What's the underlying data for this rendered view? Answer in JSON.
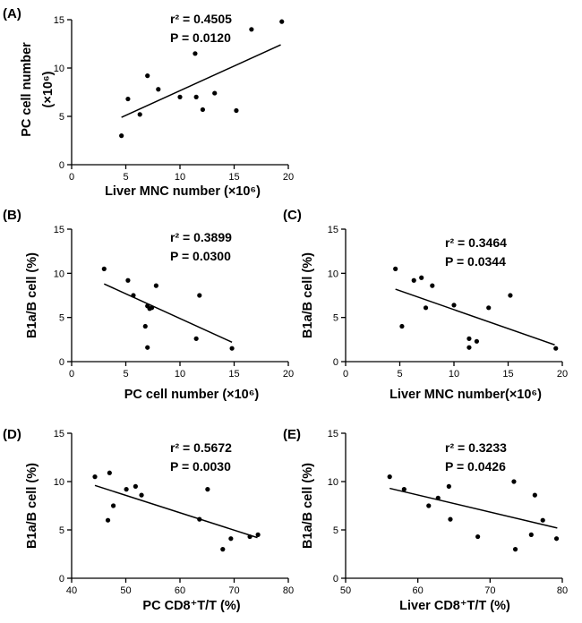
{
  "chart_data": [
    {
      "id": "A",
      "type": "scatter",
      "panel_label": "(A)",
      "xlabel": "Liver MNC number (×10⁶)",
      "ylabel": "PC cell  number",
      "ylabel_unit": "(×10⁶)",
      "xlim": [
        0,
        20
      ],
      "ylim": [
        0,
        15
      ],
      "xticks": [
        0,
        5,
        10,
        15,
        20
      ],
      "yticks": [
        0,
        5,
        10,
        15
      ],
      "points": [
        [
          4.6,
          3.0
        ],
        [
          5.2,
          6.8
        ],
        [
          6.3,
          5.2
        ],
        [
          7.0,
          9.2
        ],
        [
          8.0,
          7.8
        ],
        [
          10.0,
          7.0
        ],
        [
          11.4,
          11.5
        ],
        [
          11.5,
          7.0
        ],
        [
          12.1,
          5.7
        ],
        [
          13.2,
          7.4
        ],
        [
          15.2,
          5.6
        ],
        [
          16.6,
          14.0
        ],
        [
          19.4,
          14.8
        ]
      ],
      "fit": {
        "x": [
          4.6,
          19.3
        ],
        "y": [
          4.9,
          12.4
        ]
      },
      "stats": {
        "r2": "r² = 0.4505",
        "p": "P = 0.0120"
      }
    },
    {
      "id": "B",
      "type": "scatter",
      "panel_label": "(B)",
      "xlabel": "PC cell number (×10⁶)",
      "ylabel": "B1a/B cell (%)",
      "xlim": [
        0,
        20
      ],
      "ylim": [
        0,
        15
      ],
      "xticks": [
        0,
        5,
        10,
        15,
        20
      ],
      "yticks": [
        0,
        5,
        10,
        15
      ],
      "points": [
        [
          3.0,
          10.5
        ],
        [
          5.2,
          9.2
        ],
        [
          5.7,
          7.5
        ],
        [
          6.8,
          4.0
        ],
        [
          7.0,
          1.6
        ],
        [
          7.0,
          6.3
        ],
        [
          7.2,
          6.0
        ],
        [
          7.4,
          6.1
        ],
        [
          7.8,
          8.6
        ],
        [
          11.5,
          2.6
        ],
        [
          11.8,
          7.5
        ],
        [
          14.8,
          1.5
        ]
      ],
      "fit": {
        "x": [
          3.0,
          14.8
        ],
        "y": [
          8.8,
          2.2
        ]
      },
      "stats": {
        "r2": "r² = 0.3899",
        "p": "P = 0.0300"
      }
    },
    {
      "id": "C",
      "type": "scatter",
      "panel_label": "(C)",
      "xlabel": "Liver MNC number(×10⁶)",
      "ylabel": "B1a/B cell (%)",
      "xlim": [
        0,
        20
      ],
      "ylim": [
        0,
        15
      ],
      "xticks": [
        0,
        5,
        10,
        15,
        20
      ],
      "yticks": [
        0,
        5,
        10,
        15
      ],
      "points": [
        [
          4.6,
          10.5
        ],
        [
          5.2,
          4.0
        ],
        [
          6.3,
          9.2
        ],
        [
          7.0,
          9.5
        ],
        [
          7.4,
          6.1
        ],
        [
          8.0,
          8.6
        ],
        [
          10.0,
          6.4
        ],
        [
          11.4,
          1.6
        ],
        [
          11.4,
          2.6
        ],
        [
          12.1,
          2.3
        ],
        [
          13.2,
          6.1
        ],
        [
          15.2,
          7.5
        ],
        [
          19.4,
          1.5
        ]
      ],
      "fit": {
        "x": [
          4.6,
          19.3
        ],
        "y": [
          8.2,
          1.9
        ]
      },
      "stats": {
        "r2": "r² = 0.3464",
        "p": "P = 0.0344"
      }
    },
    {
      "id": "D",
      "type": "scatter",
      "panel_label": "(D)",
      "xlabel": "PC CD8⁺T/T (%)",
      "ylabel": "B1a/B cell (%)",
      "xlim": [
        40,
        80
      ],
      "ylim": [
        0,
        15
      ],
      "xticks": [
        40,
        50,
        60,
        70,
        80
      ],
      "yticks": [
        0,
        5,
        10,
        15
      ],
      "points": [
        [
          44.3,
          10.5
        ],
        [
          46.7,
          6.0
        ],
        [
          47.0,
          10.9
        ],
        [
          47.7,
          7.5
        ],
        [
          50.1,
          9.2
        ],
        [
          51.8,
          9.5
        ],
        [
          52.9,
          8.6
        ],
        [
          63.6,
          6.1
        ],
        [
          65.1,
          9.2
        ],
        [
          67.9,
          3.0
        ],
        [
          69.4,
          4.1
        ],
        [
          72.9,
          4.3
        ],
        [
          74.4,
          4.5
        ]
      ],
      "fit": {
        "x": [
          44.3,
          74.3
        ],
        "y": [
          9.6,
          4.2
        ]
      },
      "stats": {
        "r2": "r² = 0.5672",
        "p": "P = 0.0030"
      }
    },
    {
      "id": "E",
      "type": "scatter",
      "panel_label": "(E)",
      "xlabel": "Liver  CD8⁺T/T (%)",
      "ylabel": "B1a/B cell (%)",
      "xlim": [
        50,
        80
      ],
      "ylim": [
        0,
        15
      ],
      "xticks": [
        50,
        60,
        70,
        80
      ],
      "yticks": [
        0,
        5,
        10,
        15
      ],
      "points": [
        [
          56.1,
          10.5
        ],
        [
          58.1,
          9.2
        ],
        [
          61.5,
          7.5
        ],
        [
          62.8,
          8.3
        ],
        [
          64.3,
          9.5
        ],
        [
          64.5,
          6.1
        ],
        [
          68.3,
          4.3
        ],
        [
          73.3,
          10.0
        ],
        [
          73.5,
          3.0
        ],
        [
          75.7,
          4.5
        ],
        [
          76.2,
          8.6
        ],
        [
          77.3,
          6.0
        ],
        [
          79.2,
          4.1
        ]
      ],
      "fit": {
        "x": [
          56.1,
          79.3
        ],
        "y": [
          9.3,
          5.2
        ]
      },
      "stats": {
        "r2": "r² = 0.3233",
        "p": "P = 0.0426"
      }
    }
  ]
}
